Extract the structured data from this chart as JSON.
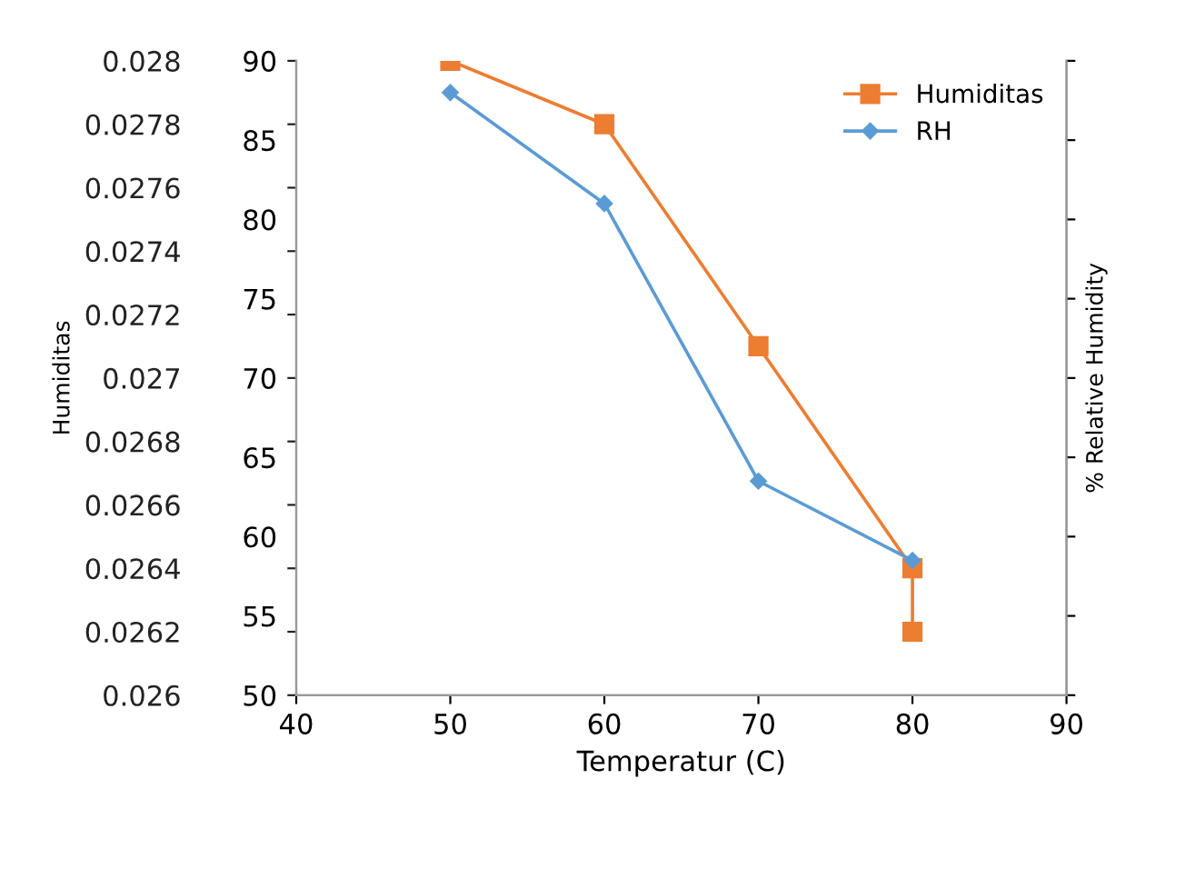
{
  "chart_data": {
    "type": "line",
    "xlabel": "Temperatur (C)",
    "ylabel": "Humiditas",
    "y2label": "% Relative Humidity",
    "xlim": [
      40,
      90
    ],
    "xticks": [
      40,
      50,
      60,
      70,
      80,
      90
    ],
    "ylim": [
      0.026,
      0.028
    ],
    "yticks": [
      0.026,
      0.0262,
      0.0264,
      0.0266,
      0.0268,
      0.027,
      0.0272,
      0.0274,
      0.0276,
      0.0278,
      0.028
    ],
    "y2lim": [
      50,
      90
    ],
    "y2ticks": [
      50,
      55,
      60,
      65,
      70,
      75,
      80,
      85,
      90
    ],
    "series": [
      {
        "name": "Humiditas",
        "color": "#ed7d31",
        "marker": "square",
        "axis": "y",
        "x": [
          50,
          60,
          70,
          80,
          80
        ],
        "values": [
          0.028,
          0.0278,
          0.0271,
          0.0264,
          0.0262
        ]
      },
      {
        "name": "RH",
        "color": "#5b9bd5",
        "marker": "diamond",
        "axis": "y2",
        "x": [
          50,
          60,
          70,
          80
        ],
        "values": [
          88,
          81,
          63.5,
          58.5
        ]
      }
    ],
    "legend": "top right",
    "grid": false
  }
}
